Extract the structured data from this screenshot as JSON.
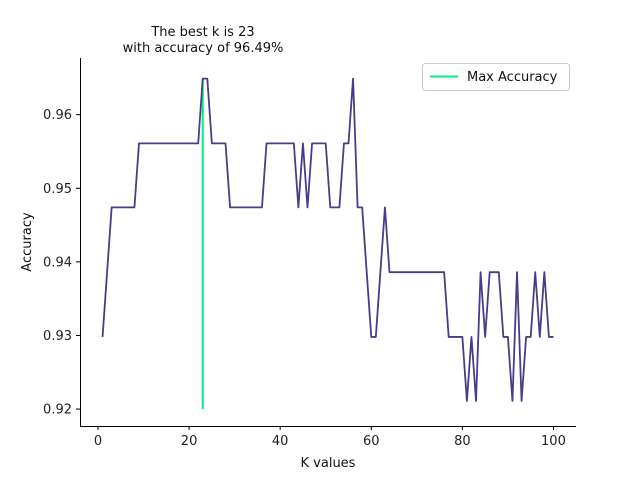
{
  "chart_data": {
    "type": "line",
    "title": [
      "The best k is 23",
      "with accuracy of 96.49%"
    ],
    "xlabel": "K values",
    "ylabel": "Accuracy",
    "xlim": [
      -3.95,
      104.95
    ],
    "ylim": [
      0.9177,
      0.9677
    ],
    "x_ticks": [
      0,
      20,
      40,
      60,
      80,
      100
    ],
    "y_ticks": [
      0.92,
      0.93,
      0.94,
      0.95,
      0.96
    ],
    "y_tick_labels": [
      "0.92",
      "0.93",
      "0.94",
      "0.95",
      "0.96"
    ],
    "grid": false,
    "legend": {
      "position": "top-right"
    },
    "series": [
      {
        "x": [
          1,
          2,
          3,
          4,
          5,
          6,
          7,
          8,
          9,
          10,
          11,
          12,
          13,
          14,
          15,
          16,
          17,
          18,
          19,
          20,
          21,
          22,
          23,
          24,
          25,
          26,
          27,
          28,
          29,
          30,
          31,
          32,
          33,
          34,
          35,
          36,
          37,
          38,
          39,
          40,
          41,
          42,
          43,
          44,
          45,
          46,
          47,
          48,
          49,
          50,
          51,
          52,
          53,
          54,
          55,
          56,
          57,
          58,
          59,
          60,
          61,
          62,
          63,
          64,
          65,
          66,
          67,
          68,
          69,
          70,
          71,
          72,
          73,
          74,
          75,
          76,
          77,
          78,
          79,
          80,
          81,
          82,
          83,
          84,
          85,
          86,
          87,
          88,
          89,
          90,
          91,
          92,
          93,
          94,
          95,
          96,
          97,
          98,
          99,
          100
        ],
        "values": [
          0.9298,
          0.9386,
          0.9474,
          0.9474,
          0.9474,
          0.9474,
          0.9474,
          0.9474,
          0.9561,
          0.9561,
          0.9561,
          0.9561,
          0.9561,
          0.9561,
          0.9561,
          0.9561,
          0.9561,
          0.9561,
          0.9561,
          0.9561,
          0.9561,
          0.9561,
          0.9649,
          0.9649,
          0.9561,
          0.9561,
          0.9561,
          0.9561,
          0.9474,
          0.9474,
          0.9474,
          0.9474,
          0.9474,
          0.9474,
          0.9474,
          0.9474,
          0.9561,
          0.9561,
          0.9561,
          0.9561,
          0.9561,
          0.9561,
          0.9561,
          0.9474,
          0.9561,
          0.9474,
          0.9561,
          0.9561,
          0.9561,
          0.9561,
          0.9474,
          0.9474,
          0.9474,
          0.9561,
          0.9561,
          0.9649,
          0.9474,
          0.9474,
          0.9386,
          0.9298,
          0.9298,
          0.9386,
          0.9474,
          0.9386,
          0.9386,
          0.9386,
          0.9386,
          0.9386,
          0.9386,
          0.9386,
          0.9386,
          0.9386,
          0.9386,
          0.9386,
          0.9386,
          0.9386,
          0.9298,
          0.9298,
          0.9298,
          0.9298,
          0.9211,
          0.9298,
          0.9211,
          0.9386,
          0.9298,
          0.9386,
          0.9386,
          0.9386,
          0.9298,
          0.9298,
          0.9211,
          0.9386,
          0.9211,
          0.9298,
          0.9298,
          0.9386,
          0.9298,
          0.9386,
          0.9298,
          0.9298
        ],
        "color": "#483d8b"
      },
      {
        "name": "Max Accuracy",
        "type": "vline",
        "x": 23,
        "y_range": [
          0.92,
          0.9649
        ],
        "color": "#00ee80"
      }
    ]
  }
}
